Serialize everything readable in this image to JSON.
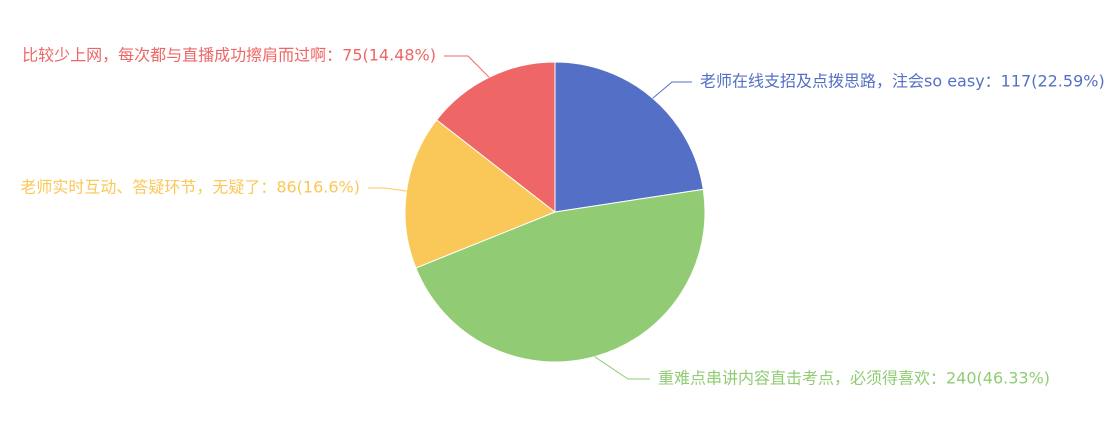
{
  "chart_data": {
    "type": "pie",
    "title": "",
    "start_angle_deg": 90,
    "direction": "clockwise",
    "slices": [
      {
        "label": "老师在线支招及点拨思路，注会so easy",
        "value": 117,
        "percent": "22.59%",
        "color": "#5470c6",
        "display_text": "老师在线支招及点拨思路，注会so easy：117(22.59%)"
      },
      {
        "label": "重难点串讲内容直击考点，必须得喜欢",
        "value": 240,
        "percent": "46.33%",
        "color": "#91cc75",
        "display_text": "重难点串讲内容直击考点，必须得喜欢：240(46.33%)"
      },
      {
        "label": "老师实时互动、答疑环节，无疑了",
        "value": 86,
        "percent": "16.6%",
        "color": "#fac858",
        "display_text": "老师实时互动、答疑环节，无疑了：86(16.6%)"
      },
      {
        "label": "比较少上网，每次都与直播成功擦肩而过啊",
        "value": 75,
        "percent": "14.48%",
        "color": "#ee6666",
        "display_text": "比较少上网，每次都与直播成功擦肩而过啊：75(14.48%)"
      }
    ]
  }
}
